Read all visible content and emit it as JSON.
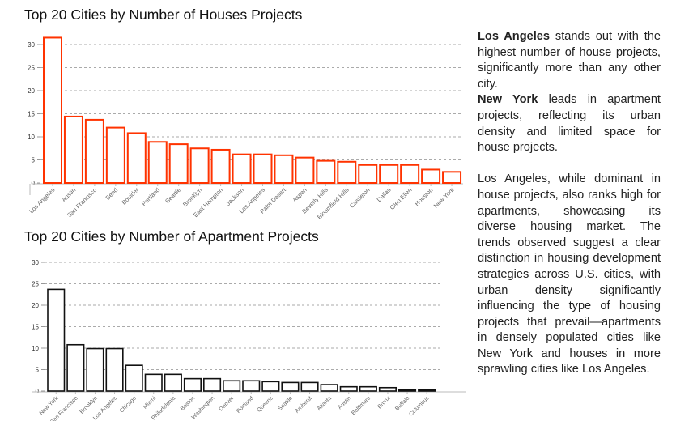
{
  "chart_data": [
    {
      "type": "bar",
      "title": "Top 20 Cities by Number of Houses Projects",
      "categories": [
        "Los Angeles",
        "Austin",
        "San Francisco",
        "Bend",
        "Boulder",
        "Portland",
        "Seattle",
        "Brooklyn",
        "East Hampton",
        "Jackson",
        "Los Angeles",
        "Palm Desert",
        "Aspen",
        "Beverly Hills",
        "Bloomfield Hills",
        "Castleton",
        "Dallas",
        "Glen Ellen",
        "Houston",
        "New York"
      ],
      "values": [
        31.5,
        14.4,
        13.7,
        12,
        10.8,
        8.9,
        8.4,
        7.5,
        7.2,
        6.2,
        6.2,
        6,
        5.5,
        4.8,
        4.6,
        3.9,
        3.9,
        3.9,
        2.9,
        2.4
      ],
      "ylim": [
        0,
        30
      ],
      "yticks": [
        0,
        5,
        10,
        15,
        20,
        25,
        30
      ],
      "grid": true,
      "bar_color": "#ff3300",
      "xlabel": "",
      "ylabel": ""
    },
    {
      "type": "bar",
      "title": "Top 20 Cities by Number of Apartment Projects",
      "categories": [
        "New York",
        "San Francisco",
        "Brooklyn",
        "Los Angeles",
        "Chicago",
        "Miami",
        "Philadelphia",
        "Boston",
        "Washington",
        "Denver",
        "Portland",
        "Queens",
        "Seattle",
        "Amherst",
        "Atlanta",
        "Austin",
        "Baltimore",
        "Bronx",
        "Buffalo",
        "Columbus"
      ],
      "values": [
        23.7,
        10.8,
        9.9,
        9.9,
        6,
        3.9,
        3.9,
        2.9,
        2.9,
        2.4,
        2.4,
        2.2,
        2,
        2,
        1.5,
        1,
        1,
        0.8,
        0.3,
        0.3
      ],
      "ylim": [
        0,
        30
      ],
      "yticks": [
        0,
        5,
        10,
        15,
        20,
        25,
        30
      ],
      "grid": true,
      "bar_color": "#111111",
      "xlabel": "",
      "ylabel": ""
    }
  ],
  "sidebar": {
    "p1_bold": "Los Angeles",
    "p1_rest": " stands out with the highest number of house projects, significantly more than any other city.",
    "p2_bold": "New York",
    "p2_rest": " leads in apartment projects, reflecting its urban density and limited space for house projects.",
    "p3": "Los Angeles, while dominant in house projects, also ranks high for apartments, showcasing its diverse housing market. The trends observed suggest a clear distinction in housing development strategies across U.S. cities, with urban density significantly influencing the type of housing projects that prevail—apartments in densely populated cities like New York and houses in more sprawling cities like Los Angeles."
  }
}
